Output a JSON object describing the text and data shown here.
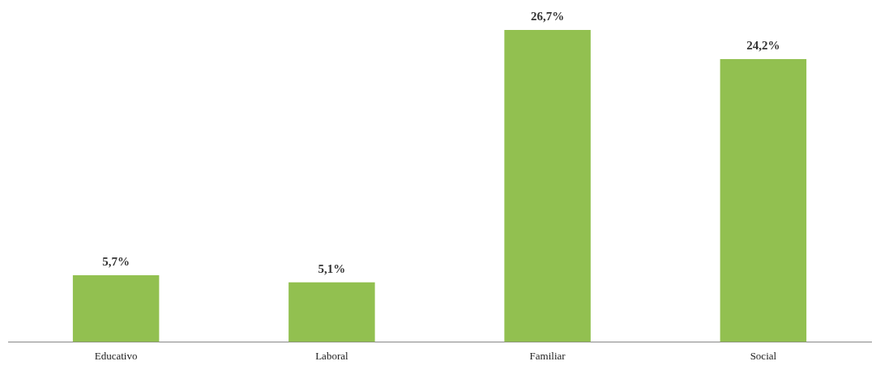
{
  "chart_data": {
    "type": "bar",
    "categories": [
      "Educativo",
      "Laboral",
      "Familiar",
      "Social"
    ],
    "values": [
      5.7,
      5.1,
      26.7,
      24.2
    ],
    "value_labels": [
      "5,7%",
      "5,1%",
      "26,7%",
      "24,2%"
    ],
    "color": "#92c050",
    "grid": false,
    "legend": false
  }
}
